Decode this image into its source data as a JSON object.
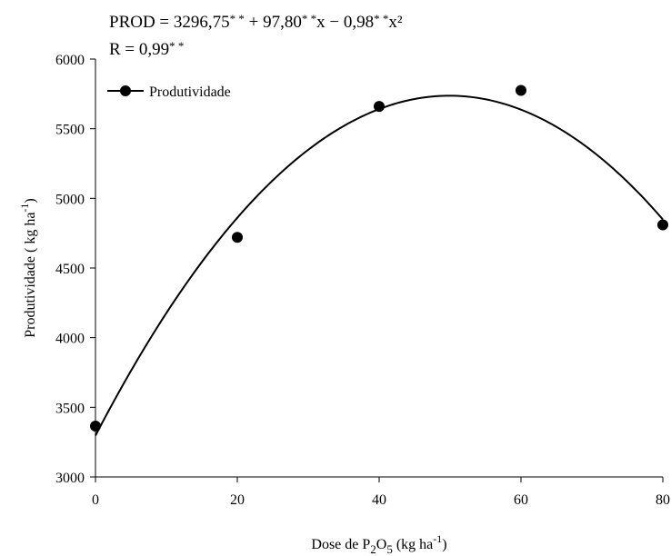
{
  "chart_data": {
    "type": "scatter",
    "equation": {
      "prefix": "PROD = 3296,75",
      "sig1": "* *",
      "part2": " + 97,80",
      "sig2": "* *",
      "part3": "x − 0,98",
      "sig3": "* *",
      "part4": "x²"
    },
    "r_text": {
      "prefix": "R = 0,99",
      "sig": "* *"
    },
    "xlabel": {
      "pre": "Dose de P",
      "sub1": "2",
      "mid": "O",
      "sub2": "5",
      "post1": " (kg ha",
      "sup": "-1",
      "post2": ")"
    },
    "ylabel": {
      "pre": "Produtividade ( kg ha",
      "sup": "-1",
      "post": ")"
    },
    "xlim": [
      0,
      80
    ],
    "ylim": [
      3000,
      6000
    ],
    "x_ticks": [
      "0",
      "20",
      "40",
      "60",
      "80"
    ],
    "y_ticks": [
      "3000",
      "3500",
      "4000",
      "4500",
      "5000",
      "5500",
      "6000"
    ],
    "grid": false,
    "legend_position": "top-left",
    "series": [
      {
        "name": "Produtividade",
        "points": [
          {
            "x": 0,
            "y": 3365
          },
          {
            "x": 20,
            "y": 4720
          },
          {
            "x": 40,
            "y": 5660
          },
          {
            "x": 60,
            "y": 5775
          },
          {
            "x": 80,
            "y": 4810
          }
        ]
      }
    ],
    "fit": {
      "a": 3296.75,
      "b": 97.8,
      "c": -0.98
    },
    "colors": {
      "marker": "#000000",
      "line": "#000000"
    }
  }
}
